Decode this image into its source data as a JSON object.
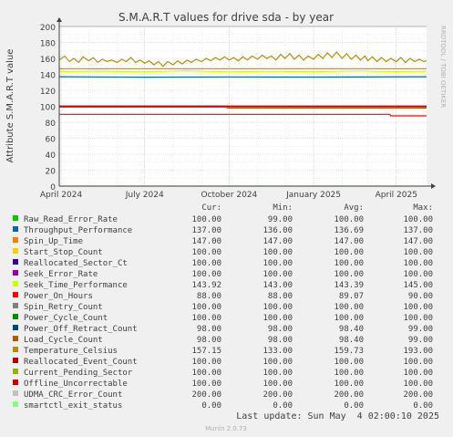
{
  "chart_data": {
    "type": "line",
    "title": "S.M.A.R.T values for drive sda - by year",
    "ylabel": "Attribute S.M.A.R.T value",
    "side_label": "RRDTOOL / TOBI OETIKER",
    "ylim": [
      0,
      200
    ],
    "yticks": [
      0,
      20,
      40,
      60,
      80,
      100,
      120,
      140,
      160,
      180,
      200
    ],
    "xlim": [
      "2024-03-30",
      "2025-05-04"
    ],
    "xticks": [
      {
        "label": "April 2024",
        "date": "2024-04-01"
      },
      {
        "label": "July 2024",
        "date": "2024-07-01"
      },
      {
        "label": "October 2024",
        "date": "2024-10-01"
      },
      {
        "label": "January 2025",
        "date": "2025-01-01"
      },
      {
        "label": "April 2025",
        "date": "2025-04-01"
      }
    ],
    "grid": true,
    "legend_headers": {
      "cur": "Cur:",
      "min": "Min:",
      "avg": "Avg:",
      "max": "Max:"
    },
    "series": [
      {
        "name": "Raw_Read_Error_Rate",
        "color": "#00cc00",
        "cur": "100.00",
        "min": "99.00",
        "avg": "100.00",
        "max": "100.00",
        "points": [
          [
            "2024-03-30",
            100
          ],
          [
            "2025-05-04",
            100
          ]
        ]
      },
      {
        "name": "Throughput_Performance",
        "color": "#0066b3",
        "cur": "137.00",
        "min": "136.00",
        "avg": "136.69",
        "max": "137.00",
        "points": [
          [
            "2024-03-30",
            137
          ],
          [
            "2024-07-01",
            136.5
          ],
          [
            "2024-10-01",
            136.8
          ],
          [
            "2025-01-01",
            136.6
          ],
          [
            "2025-05-04",
            137
          ]
        ]
      },
      {
        "name": "Spin_Up_Time",
        "color": "#ff8000",
        "cur": "147.00",
        "min": "147.00",
        "avg": "147.00",
        "max": "147.00",
        "points": [
          [
            "2024-03-30",
            147
          ],
          [
            "2025-05-04",
            147
          ]
        ]
      },
      {
        "name": "Start_Stop_Count",
        "color": "#ffcc00",
        "cur": "100.00",
        "min": "100.00",
        "avg": "100.00",
        "max": "100.00",
        "points": [
          [
            "2024-03-30",
            100
          ],
          [
            "2025-05-04",
            100
          ]
        ]
      },
      {
        "name": "Reallocated_Sector_Ct",
        "color": "#330099",
        "cur": "100.00",
        "min": "100.00",
        "avg": "100.00",
        "max": "100.00",
        "points": [
          [
            "2024-03-30",
            100
          ],
          [
            "2025-05-04",
            100
          ]
        ]
      },
      {
        "name": "Seek_Error_Rate",
        "color": "#990099",
        "cur": "100.00",
        "min": "100.00",
        "avg": "100.00",
        "max": "100.00",
        "points": [
          [
            "2024-03-30",
            100
          ],
          [
            "2025-05-04",
            100
          ]
        ]
      },
      {
        "name": "Seek_Time_Performance",
        "color": "#ccff00",
        "cur": "143.92",
        "min": "143.00",
        "avg": "143.39",
        "max": "145.00",
        "points": [
          [
            "2024-03-30",
            143.5
          ],
          [
            "2024-05-15",
            144
          ],
          [
            "2024-07-01",
            143.2
          ],
          [
            "2024-08-15",
            144.5
          ],
          [
            "2024-10-01",
            143.1
          ],
          [
            "2024-11-15",
            143.8
          ],
          [
            "2025-01-01",
            143.3
          ],
          [
            "2025-02-15",
            144.2
          ],
          [
            "2025-04-01",
            143.4
          ],
          [
            "2025-05-04",
            143.9
          ]
        ]
      },
      {
        "name": "Power_On_Hours",
        "color": "#ff0000",
        "cur": "88.00",
        "min": "88.00",
        "avg": "89.07",
        "max": "90.00",
        "points": [
          [
            "2024-03-30",
            90
          ],
          [
            "2025-03-25",
            90
          ],
          [
            "2025-03-26",
            88
          ],
          [
            "2025-05-04",
            88
          ]
        ]
      },
      {
        "name": "Spin_Retry_Count",
        "color": "#808080",
        "cur": "100.00",
        "min": "100.00",
        "avg": "100.00",
        "max": "100.00",
        "points": [
          [
            "2024-03-30",
            100
          ],
          [
            "2025-05-04",
            100
          ]
        ]
      },
      {
        "name": "Power_Cycle_Count",
        "color": "#008f00",
        "cur": "100.00",
        "min": "100.00",
        "avg": "100.00",
        "max": "100.00",
        "points": [
          [
            "2024-03-30",
            100
          ],
          [
            "2025-05-04",
            100
          ]
        ]
      },
      {
        "name": "Power_Off_Retract_Count",
        "color": "#00487d",
        "cur": "98.00",
        "min": "98.00",
        "avg": "98.40",
        "max": "99.00",
        "points": [
          [
            "2024-03-30",
            99
          ],
          [
            "2024-09-28",
            99
          ],
          [
            "2024-09-29",
            98
          ],
          [
            "2025-05-04",
            98
          ]
        ]
      },
      {
        "name": "Load_Cycle_Count",
        "color": "#b35a00",
        "cur": "98.00",
        "min": "98.00",
        "avg": "98.40",
        "max": "99.00",
        "points": [
          [
            "2024-03-30",
            99
          ],
          [
            "2024-09-28",
            99
          ],
          [
            "2024-09-29",
            98
          ],
          [
            "2025-05-04",
            98
          ]
        ]
      },
      {
        "name": "Temperature_Celsius",
        "color": "#b38f00",
        "cur": "157.15",
        "min": "133.00",
        "avg": "159.73",
        "max": "193.00",
        "points": [
          [
            "2024-03-30",
            158
          ],
          [
            "2024-04-05",
            163
          ],
          [
            "2024-04-10",
            156
          ],
          [
            "2024-04-15",
            160
          ],
          [
            "2024-04-20",
            155
          ],
          [
            "2024-04-25",
            162
          ],
          [
            "2024-05-01",
            157
          ],
          [
            "2024-05-06",
            161
          ],
          [
            "2024-05-11",
            155
          ],
          [
            "2024-05-16",
            159
          ],
          [
            "2024-05-21",
            156
          ],
          [
            "2024-05-26",
            158
          ],
          [
            "2024-06-01",
            155
          ],
          [
            "2024-06-06",
            159
          ],
          [
            "2024-06-11",
            156
          ],
          [
            "2024-06-16",
            161
          ],
          [
            "2024-06-21",
            155
          ],
          [
            "2024-06-26",
            158
          ],
          [
            "2024-07-01",
            154
          ],
          [
            "2024-07-06",
            157
          ],
          [
            "2024-07-11",
            152
          ],
          [
            "2024-07-16",
            156
          ],
          [
            "2024-07-21",
            150
          ],
          [
            "2024-07-26",
            156
          ],
          [
            "2024-08-01",
            152
          ],
          [
            "2024-08-06",
            157
          ],
          [
            "2024-08-11",
            153
          ],
          [
            "2024-08-16",
            158
          ],
          [
            "2024-08-21",
            155
          ],
          [
            "2024-08-26",
            159
          ],
          [
            "2024-09-01",
            156
          ],
          [
            "2024-09-06",
            160
          ],
          [
            "2024-09-11",
            157
          ],
          [
            "2024-09-16",
            161
          ],
          [
            "2024-09-21",
            158
          ],
          [
            "2024-09-26",
            162
          ],
          [
            "2024-10-01",
            158
          ],
          [
            "2024-10-06",
            161
          ],
          [
            "2024-10-11",
            157
          ],
          [
            "2024-10-16",
            162
          ],
          [
            "2024-10-21",
            158
          ],
          [
            "2024-10-26",
            163
          ],
          [
            "2024-11-01",
            159
          ],
          [
            "2024-11-06",
            164
          ],
          [
            "2024-11-11",
            160
          ],
          [
            "2024-11-16",
            163
          ],
          [
            "2024-11-21",
            158
          ],
          [
            "2024-11-26",
            165
          ],
          [
            "2024-12-01",
            160
          ],
          [
            "2024-12-06",
            166
          ],
          [
            "2024-12-11",
            159
          ],
          [
            "2024-12-16",
            164
          ],
          [
            "2024-12-21",
            158
          ],
          [
            "2024-12-26",
            163
          ],
          [
            "2025-01-01",
            159
          ],
          [
            "2025-01-06",
            165
          ],
          [
            "2025-01-11",
            160
          ],
          [
            "2025-01-16",
            167
          ],
          [
            "2025-01-21",
            161
          ],
          [
            "2025-01-26",
            168
          ],
          [
            "2025-02-01",
            160
          ],
          [
            "2025-02-06",
            166
          ],
          [
            "2025-02-11",
            159
          ],
          [
            "2025-02-16",
            164
          ],
          [
            "2025-02-21",
            158
          ],
          [
            "2025-02-26",
            163
          ],
          [
            "2025-03-01",
            157
          ],
          [
            "2025-03-06",
            162
          ],
          [
            "2025-03-11",
            156
          ],
          [
            "2025-03-16",
            161
          ],
          [
            "2025-03-21",
            156
          ],
          [
            "2025-03-26",
            160
          ],
          [
            "2025-04-01",
            156
          ],
          [
            "2025-04-06",
            161
          ],
          [
            "2025-04-11",
            155
          ],
          [
            "2025-04-16",
            160
          ],
          [
            "2025-04-21",
            156
          ],
          [
            "2025-04-26",
            159
          ],
          [
            "2025-05-01",
            156
          ],
          [
            "2025-05-04",
            157
          ]
        ]
      },
      {
        "name": "Reallocated_Event_Count",
        "color": "#b30000",
        "cur": "100.00",
        "min": "100.00",
        "avg": "100.00",
        "max": "100.00",
        "points": [
          [
            "2024-03-30",
            100
          ],
          [
            "2025-05-04",
            100
          ]
        ]
      },
      {
        "name": "Current_Pending_Sector",
        "color": "#8fb300",
        "cur": "100.00",
        "min": "100.00",
        "avg": "100.00",
        "max": "100.00",
        "points": [
          [
            "2024-03-30",
            100
          ],
          [
            "2025-05-04",
            100
          ]
        ]
      },
      {
        "name": "Offline_Uncorrectable",
        "color": "#cc0000",
        "cur": "100.00",
        "min": "100.00",
        "avg": "100.00",
        "max": "100.00",
        "points": [
          [
            "2024-03-30",
            100
          ],
          [
            "2025-05-04",
            100
          ]
        ]
      },
      {
        "name": "UDMA_CRC_Error_Count",
        "color": "#c0c0c0",
        "cur": "200.00",
        "min": "200.00",
        "avg": "200.00",
        "max": "200.00",
        "points": [
          [
            "2024-03-30",
            200
          ],
          [
            "2025-05-04",
            200
          ]
        ]
      },
      {
        "name": "smartctl_exit_status",
        "color": "#80ff80",
        "cur": "0.00",
        "min": "0.00",
        "avg": "0.00",
        "max": "0.00",
        "points": [
          [
            "2024-03-30",
            0
          ],
          [
            "2025-05-04",
            0
          ]
        ]
      }
    ]
  },
  "footer": {
    "last_update": "Last update: Sun May  4 02:00:10 2025",
    "version": "Munin 2.0.73"
  },
  "colors": {
    "background": "#f0f0f0",
    "plot_background": "#ffffff",
    "major_grid": "#e0c0c0",
    "minor_grid": "#d8d8d8",
    "text": "#404040",
    "faint_text": "#b0b0b0"
  }
}
